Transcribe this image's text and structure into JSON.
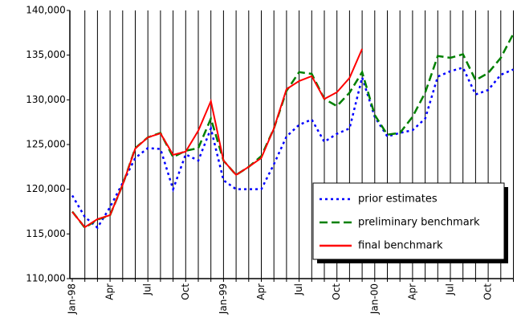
{
  "chart_data": {
    "type": "line",
    "categories": [
      "Jan-98",
      null,
      null,
      "Apr",
      null,
      null,
      "Jul",
      null,
      null,
      "Oct",
      null,
      null,
      "Jan-99",
      null,
      null,
      "Apr",
      null,
      null,
      "Jul",
      null,
      null,
      "Oct",
      null,
      null,
      "Jan-00",
      null,
      null,
      "Apr",
      null,
      null,
      "Jul",
      null,
      null,
      "Oct",
      null,
      null
    ],
    "series": [
      {
        "name": "prior estimates",
        "color": "#0000ff",
        "dash": "dotted",
        "values": [
          119300,
          116900,
          115700,
          118000,
          120700,
          123500,
          124600,
          124500,
          120000,
          123900,
          123200,
          126800,
          121000,
          120000,
          120000,
          120000,
          122800,
          125900,
          127200,
          127800,
          125300,
          126200,
          126800,
          132500,
          128100,
          125900,
          126300,
          126600,
          127900,
          132600,
          133200,
          133600,
          130600,
          131100,
          132800,
          133400
        ]
      },
      {
        "name": "preliminary benchmark",
        "color": "#008000",
        "dash": "dashed",
        "values": [
          117500,
          115700,
          116600,
          117100,
          120500,
          124600,
          125800,
          126300,
          123600,
          124300,
          124600,
          127900,
          123200,
          121600,
          122500,
          123700,
          126800,
          131000,
          133100,
          132900,
          130100,
          129300,
          130800,
          133100,
          128300,
          126100,
          126300,
          128100,
          130800,
          134900,
          134700,
          135100,
          132200,
          133000,
          134700,
          137400
        ]
      },
      {
        "name": "final benchmark",
        "color": "#ff0000",
        "dash": "solid",
        "values": [
          117460,
          115750,
          116650,
          117100,
          120500,
          124550,
          125800,
          126250,
          123850,
          124200,
          126550,
          129850,
          123200,
          121600,
          122500,
          123500,
          126800,
          131200,
          132100,
          132650,
          130100,
          130850,
          132450,
          135700,
          null,
          null,
          null,
          null,
          null,
          null,
          null,
          null,
          null,
          null,
          null,
          null
        ]
      }
    ],
    "ylim": [
      110000,
      140000
    ],
    "yticks": [
      {
        "value": 110000,
        "label": "110,000"
      },
      {
        "value": 115000,
        "label": "115,000"
      },
      {
        "value": 120000,
        "label": "120,000"
      },
      {
        "value": 125000,
        "label": "125,000"
      },
      {
        "value": 130000,
        "label": "130,000"
      },
      {
        "value": 135000,
        "label": "135,000"
      },
      {
        "value": 140000,
        "label": "140,000"
      }
    ],
    "legend": "lower right"
  }
}
